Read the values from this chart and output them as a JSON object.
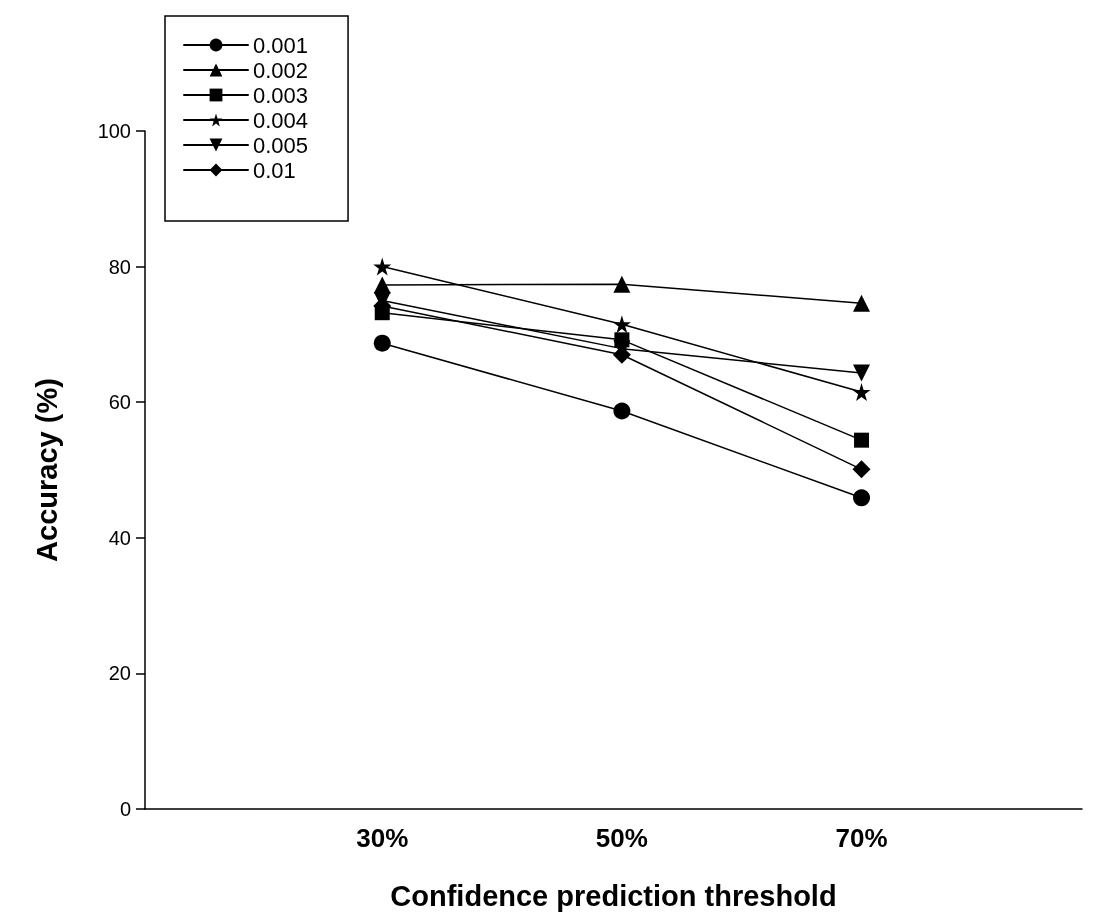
{
  "chart_data": {
    "type": "line",
    "xlabel": "Confidence prediction threshold",
    "ylabel": "Accuracy (%)",
    "categories": [
      "30%",
      "50%",
      "70%"
    ],
    "series": [
      {
        "name": "0.001",
        "color": "#000000",
        "marker": "circle",
        "values": [
          68.7,
          58.7,
          45.9
        ]
      },
      {
        "name": "0.002",
        "color": "#000000",
        "marker": "triangle",
        "values": [
          77.3,
          77.4,
          74.6
        ]
      },
      {
        "name": "0.003",
        "color": "#000000",
        "marker": "square",
        "values": [
          73.2,
          69.2,
          54.4
        ]
      },
      {
        "name": "0.004",
        "color": "#000000",
        "marker": "star",
        "values": [
          80.0,
          71.5,
          61.5
        ]
      },
      {
        "name": "0.005",
        "color": "#000000",
        "marker": "triangle-down",
        "values": [
          75.0,
          67.9,
          64.3
        ]
      },
      {
        "name": "0.01",
        "color": "#000000",
        "marker": "diamond",
        "values": [
          74.2,
          67.0,
          50.1
        ]
      }
    ],
    "ylim": [
      0,
      100
    ],
    "yticks": [
      0,
      20,
      40,
      60,
      80,
      100
    ],
    "grid": false,
    "legend": "top left",
    "line_style": "solid"
  }
}
